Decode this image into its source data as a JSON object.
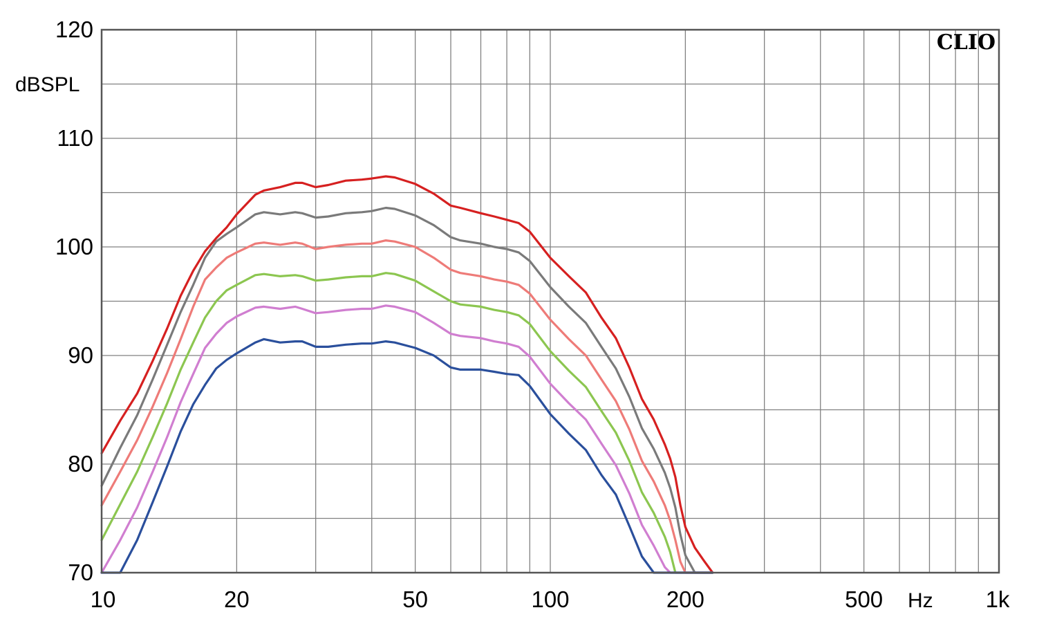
{
  "chart_data": {
    "type": "line",
    "title": "",
    "brand": "CLIO",
    "ylabel": "dBSPL",
    "xunit": "Hz",
    "xscale": "log",
    "xlim": [
      10,
      1000
    ],
    "ylim": [
      70,
      120
    ],
    "grid": true,
    "legend": "none",
    "xticks": [
      {
        "value": 10,
        "label": "10"
      },
      {
        "value": 20,
        "label": "20"
      },
      {
        "value": 50,
        "label": "50"
      },
      {
        "value": 100,
        "label": "100"
      },
      {
        "value": 200,
        "label": "200"
      },
      {
        "value": 500,
        "label": "500"
      },
      {
        "value": 1000,
        "label": "1k"
      }
    ],
    "yticks": [
      {
        "value": 70,
        "label": "70"
      },
      {
        "value": 80,
        "label": "80"
      },
      {
        "value": 90,
        "label": "90"
      },
      {
        "value": 100,
        "label": "100"
      },
      {
        "value": 110,
        "label": "110"
      },
      {
        "value": 120,
        "label": "120"
      }
    ],
    "x": [
      10,
      11,
      12,
      13,
      14,
      15,
      16,
      17,
      18,
      19,
      20,
      22,
      23,
      25,
      27,
      28,
      30,
      32,
      35,
      38,
      40,
      43,
      45,
      50,
      55,
      60,
      63,
      70,
      75,
      80,
      85,
      90,
      100,
      110,
      120,
      130,
      140,
      150,
      160,
      170,
      180,
      185,
      190,
      195,
      200,
      210,
      220,
      230
    ],
    "series": [
      {
        "color": "#d62020",
        "values": [
          81.0,
          84.0,
          86.5,
          89.5,
          92.5,
          95.5,
          97.8,
          99.6,
          100.8,
          101.8,
          103.0,
          104.8,
          105.2,
          105.5,
          105.9,
          105.9,
          105.5,
          105.7,
          106.1,
          106.2,
          106.3,
          106.5,
          106.4,
          105.8,
          104.9,
          103.8,
          103.6,
          103.1,
          102.8,
          102.5,
          102.2,
          101.4,
          99.0,
          97.3,
          95.8,
          93.5,
          91.6,
          88.9,
          86.0,
          84.1,
          81.8,
          80.5,
          78.8,
          76.2,
          74.2,
          72.3,
          71.1,
          70.0
        ]
      },
      {
        "color": "#7a7a7a",
        "values": [
          78.0,
          81.5,
          84.5,
          87.8,
          91.0,
          94.0,
          96.5,
          99.0,
          100.5,
          101.2,
          101.8,
          103.0,
          103.2,
          103.0,
          103.2,
          103.1,
          102.7,
          102.8,
          103.1,
          103.2,
          103.3,
          103.6,
          103.5,
          102.9,
          102.0,
          100.9,
          100.6,
          100.3,
          100.0,
          99.8,
          99.5,
          98.7,
          96.3,
          94.5,
          93.0,
          90.8,
          88.8,
          86.2,
          83.3,
          81.4,
          79.2,
          77.8,
          76.0,
          73.5,
          71.6,
          70.0,
          70.0,
          70.0
        ]
      },
      {
        "color": "#ee7b78",
        "values": [
          76.2,
          79.3,
          82.2,
          85.3,
          88.4,
          91.5,
          94.5,
          97.0,
          98.1,
          99.0,
          99.5,
          100.3,
          100.4,
          100.2,
          100.4,
          100.3,
          99.8,
          100.0,
          100.2,
          100.3,
          100.3,
          100.6,
          100.5,
          100.0,
          99.0,
          97.9,
          97.6,
          97.3,
          97.0,
          96.8,
          96.5,
          95.7,
          93.3,
          91.5,
          90.0,
          87.8,
          85.8,
          83.2,
          80.3,
          78.4,
          76.2,
          74.8,
          73.0,
          71.0,
          70.0,
          70.0,
          70.0,
          70.0
        ]
      },
      {
        "color": "#8cc650",
        "values": [
          73.0,
          76.3,
          79.3,
          82.5,
          85.6,
          88.7,
          91.2,
          93.5,
          95.0,
          96.0,
          96.5,
          97.4,
          97.5,
          97.3,
          97.4,
          97.3,
          96.9,
          97.0,
          97.2,
          97.3,
          97.3,
          97.6,
          97.5,
          96.9,
          95.9,
          95.0,
          94.7,
          94.5,
          94.2,
          94.0,
          93.7,
          92.9,
          90.4,
          88.6,
          87.1,
          84.9,
          82.9,
          80.3,
          77.4,
          75.5,
          73.3,
          71.9,
          70.0,
          70.0,
          70.0,
          70.0,
          70.0,
          70.0
        ]
      },
      {
        "color": "#d07ed0",
        "values": [
          70.0,
          73.0,
          76.0,
          79.3,
          82.5,
          85.7,
          88.3,
          90.7,
          92.0,
          93.0,
          93.6,
          94.4,
          94.5,
          94.3,
          94.5,
          94.3,
          93.9,
          94.0,
          94.2,
          94.3,
          94.3,
          94.6,
          94.5,
          94.0,
          93.0,
          92.0,
          91.8,
          91.6,
          91.3,
          91.1,
          90.8,
          89.9,
          87.4,
          85.6,
          84.1,
          81.9,
          79.9,
          77.3,
          74.4,
          72.5,
          70.5,
          70.0,
          70.0,
          70.0,
          70.0,
          70.0,
          70.0,
          70.0
        ]
      },
      {
        "color": "#2a4f9c",
        "values": [
          70.0,
          70.0,
          73.0,
          76.5,
          79.8,
          83.0,
          85.5,
          87.3,
          88.8,
          89.6,
          90.2,
          91.2,
          91.5,
          91.2,
          91.3,
          91.3,
          90.8,
          90.8,
          91.0,
          91.1,
          91.1,
          91.3,
          91.2,
          90.7,
          90.0,
          88.9,
          88.7,
          88.7,
          88.5,
          88.3,
          88.2,
          87.2,
          84.6,
          82.8,
          81.3,
          79.0,
          77.2,
          74.3,
          71.5,
          70.0,
          70.0,
          70.0,
          70.0,
          70.0,
          70.0,
          70.0,
          70.0,
          70.0
        ]
      }
    ]
  }
}
